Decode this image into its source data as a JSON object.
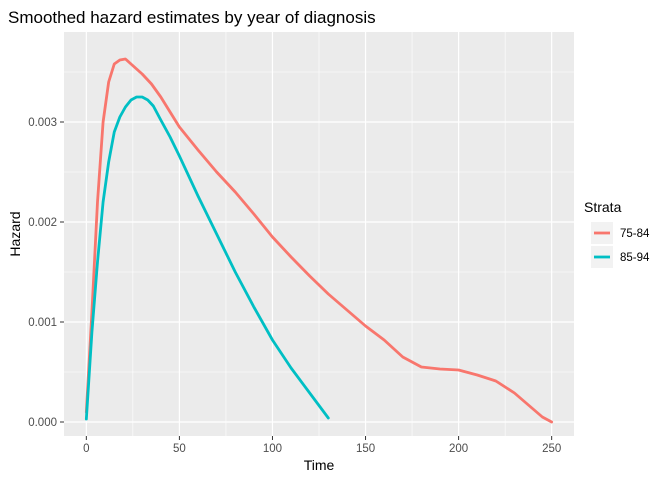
{
  "chart_data": {
    "type": "line",
    "title": "Smoothed hazard estimates by year of diagnosis",
    "xlabel": "Time",
    "ylabel": "Hazard",
    "xlim": [
      -12,
      262
    ],
    "ylim": [
      -0.00014,
      0.0039
    ],
    "xticks": [
      0,
      50,
      100,
      150,
      200,
      250
    ],
    "xtick_labels": [
      "0",
      "50",
      "100",
      "150",
      "200",
      "250"
    ],
    "yticks": [
      0,
      0.001,
      0.002,
      0.003
    ],
    "ytick_labels": [
      "0.000",
      "0.001",
      "0.002",
      "0.003"
    ],
    "grid": true,
    "background": "#ebebeb",
    "legend": {
      "title": "Strata",
      "position": "right"
    },
    "series": [
      {
        "name": "75-84",
        "color": "#f8766d",
        "x": [
          0,
          3,
          6,
          9,
          12,
          15,
          18,
          21,
          24,
          27,
          30,
          35,
          40,
          45,
          50,
          60,
          70,
          80,
          90,
          100,
          110,
          120,
          130,
          140,
          150,
          160,
          170,
          180,
          190,
          200,
          210,
          220,
          230,
          240,
          245,
          250
        ],
        "y": [
          0.0001,
          0.0011,
          0.0022,
          0.003,
          0.0034,
          0.00358,
          0.00362,
          0.00363,
          0.00358,
          0.00353,
          0.00348,
          0.00338,
          0.00325,
          0.0031,
          0.00295,
          0.00272,
          0.0025,
          0.0023,
          0.00208,
          0.00185,
          0.00165,
          0.00146,
          0.00128,
          0.00112,
          0.00096,
          0.00082,
          0.00065,
          0.00055,
          0.00053,
          0.00052,
          0.00047,
          0.00041,
          0.00029,
          0.00013,
          5e-05,
          0.0
        ]
      },
      {
        "name": "85-94",
        "color": "#00bfc4",
        "x": [
          0,
          3,
          6,
          9,
          12,
          15,
          18,
          21,
          24,
          27,
          30,
          33,
          36,
          40,
          45,
          50,
          55,
          60,
          70,
          80,
          90,
          100,
          110,
          120,
          130
        ],
        "y": [
          3e-05,
          0.0009,
          0.0016,
          0.0022,
          0.0026,
          0.0029,
          0.00305,
          0.00315,
          0.00322,
          0.00325,
          0.00325,
          0.00322,
          0.00316,
          0.00302,
          0.00285,
          0.00266,
          0.00246,
          0.00226,
          0.00188,
          0.0015,
          0.00115,
          0.00082,
          0.00054,
          0.00029,
          4e-05
        ]
      }
    ]
  }
}
